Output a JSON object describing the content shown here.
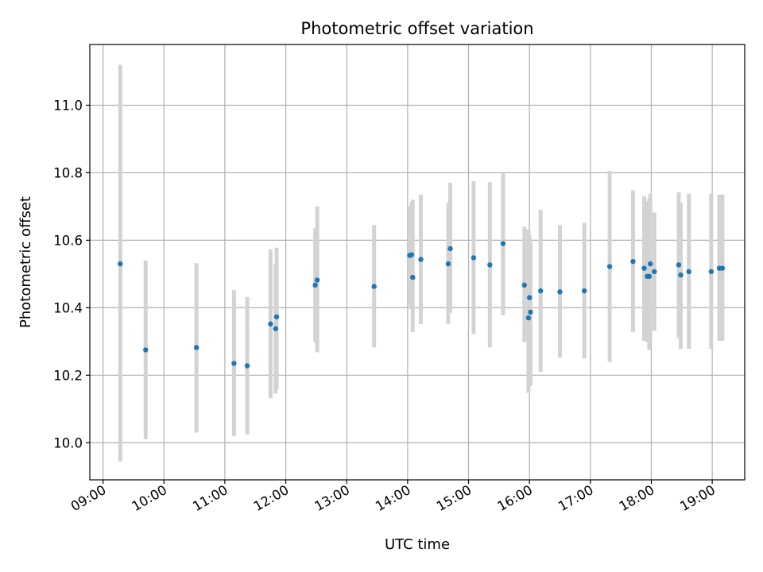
{
  "chart_data": {
    "type": "scatter",
    "title": "Photometric offset variation",
    "xlabel": "UTC time",
    "ylabel": "Photometric offset",
    "x_axis_type": "time",
    "xlim": [
      "08:47",
      "19:32"
    ],
    "ylim": [
      9.89,
      11.18
    ],
    "grid": true,
    "x_ticks": [
      "09:00",
      "10:00",
      "11:00",
      "12:00",
      "13:00",
      "14:00",
      "15:00",
      "16:00",
      "17:00",
      "18:00",
      "19:00"
    ],
    "y_ticks": [
      "10.0",
      "10.2",
      "10.4",
      "10.6",
      "10.8",
      "11.0"
    ],
    "errorbar_color": "#d3d3d3",
    "point_color": "#1f77b4",
    "points": [
      {
        "x": "09:17",
        "y": 10.53,
        "lo": 9.945,
        "hi": 11.12
      },
      {
        "x": "09:42",
        "y": 10.275,
        "lo": 10.01,
        "hi": 10.54
      },
      {
        "x": "10:32",
        "y": 10.282,
        "lo": 10.03,
        "hi": 10.532
      },
      {
        "x": "11:09",
        "y": 10.235,
        "lo": 10.02,
        "hi": 10.452
      },
      {
        "x": "11:22",
        "y": 10.228,
        "lo": 10.025,
        "hi": 10.432
      },
      {
        "x": "11:45",
        "y": 10.352,
        "lo": 10.132,
        "hi": 10.573
      },
      {
        "x": "11:50",
        "y": 10.338,
        "lo": 10.145,
        "hi": 10.53
      },
      {
        "x": "11:51",
        "y": 10.373,
        "lo": 10.158,
        "hi": 10.578
      },
      {
        "x": "12:29",
        "y": 10.467,
        "lo": 10.298,
        "hi": 10.635
      },
      {
        "x": "12:31",
        "y": 10.482,
        "lo": 10.268,
        "hi": 10.7
      },
      {
        "x": "13:27",
        "y": 10.463,
        "lo": 10.282,
        "hi": 10.645
      },
      {
        "x": "14:02",
        "y": 10.555,
        "lo": 10.405,
        "hi": 10.7
      },
      {
        "x": "14:04",
        "y": 10.557,
        "lo": 10.395,
        "hi": 10.712
      },
      {
        "x": "14:05",
        "y": 10.49,
        "lo": 10.328,
        "hi": 10.72
      },
      {
        "x": "14:13",
        "y": 10.543,
        "lo": 10.352,
        "hi": 10.735
      },
      {
        "x": "14:40",
        "y": 10.53,
        "lo": 10.352,
        "hi": 10.71
      },
      {
        "x": "14:42",
        "y": 10.575,
        "lo": 10.385,
        "hi": 10.77
      },
      {
        "x": "15:05",
        "y": 10.548,
        "lo": 10.322,
        "hi": 10.775
      },
      {
        "x": "15:21",
        "y": 10.527,
        "lo": 10.282,
        "hi": 10.772
      },
      {
        "x": "15:34",
        "y": 10.59,
        "lo": 10.378,
        "hi": 10.798
      },
      {
        "x": "15:55",
        "y": 10.467,
        "lo": 10.298,
        "hi": 10.64
      },
      {
        "x": "15:59",
        "y": 10.37,
        "lo": 10.148,
        "hi": 10.632
      },
      {
        "x": "16:00",
        "y": 10.43,
        "lo": 10.178,
        "hi": 10.615
      },
      {
        "x": "16:01",
        "y": 10.387,
        "lo": 10.168,
        "hi": 10.595
      },
      {
        "x": "16:11",
        "y": 10.45,
        "lo": 10.21,
        "hi": 10.69
      },
      {
        "x": "16:30",
        "y": 10.447,
        "lo": 10.252,
        "hi": 10.645
      },
      {
        "x": "16:54",
        "y": 10.45,
        "lo": 10.25,
        "hi": 10.652
      },
      {
        "x": "17:19",
        "y": 10.522,
        "lo": 10.24,
        "hi": 10.805
      },
      {
        "x": "17:42",
        "y": 10.537,
        "lo": 10.328,
        "hi": 10.748
      },
      {
        "x": "17:53",
        "y": 10.517,
        "lo": 10.302,
        "hi": 10.73
      },
      {
        "x": "17:56",
        "y": 10.493,
        "lo": 10.298,
        "hi": 10.715
      },
      {
        "x": "17:58",
        "y": 10.493,
        "lo": 10.275,
        "hi": 10.725
      },
      {
        "x": "17:59",
        "y": 10.53,
        "lo": 10.298,
        "hi": 10.738
      },
      {
        "x": "18:03",
        "y": 10.507,
        "lo": 10.332,
        "hi": 10.682
      },
      {
        "x": "18:27",
        "y": 10.527,
        "lo": 10.31,
        "hi": 10.742
      },
      {
        "x": "18:29",
        "y": 10.497,
        "lo": 10.278,
        "hi": 10.712
      },
      {
        "x": "18:37",
        "y": 10.507,
        "lo": 10.278,
        "hi": 10.738
      },
      {
        "x": "18:59",
        "y": 10.507,
        "lo": 10.278,
        "hi": 10.738
      },
      {
        "x": "19:07",
        "y": 10.517,
        "lo": 10.302,
        "hi": 10.735
      },
      {
        "x": "19:10",
        "y": 10.517,
        "lo": 10.302,
        "hi": 10.735
      }
    ]
  }
}
